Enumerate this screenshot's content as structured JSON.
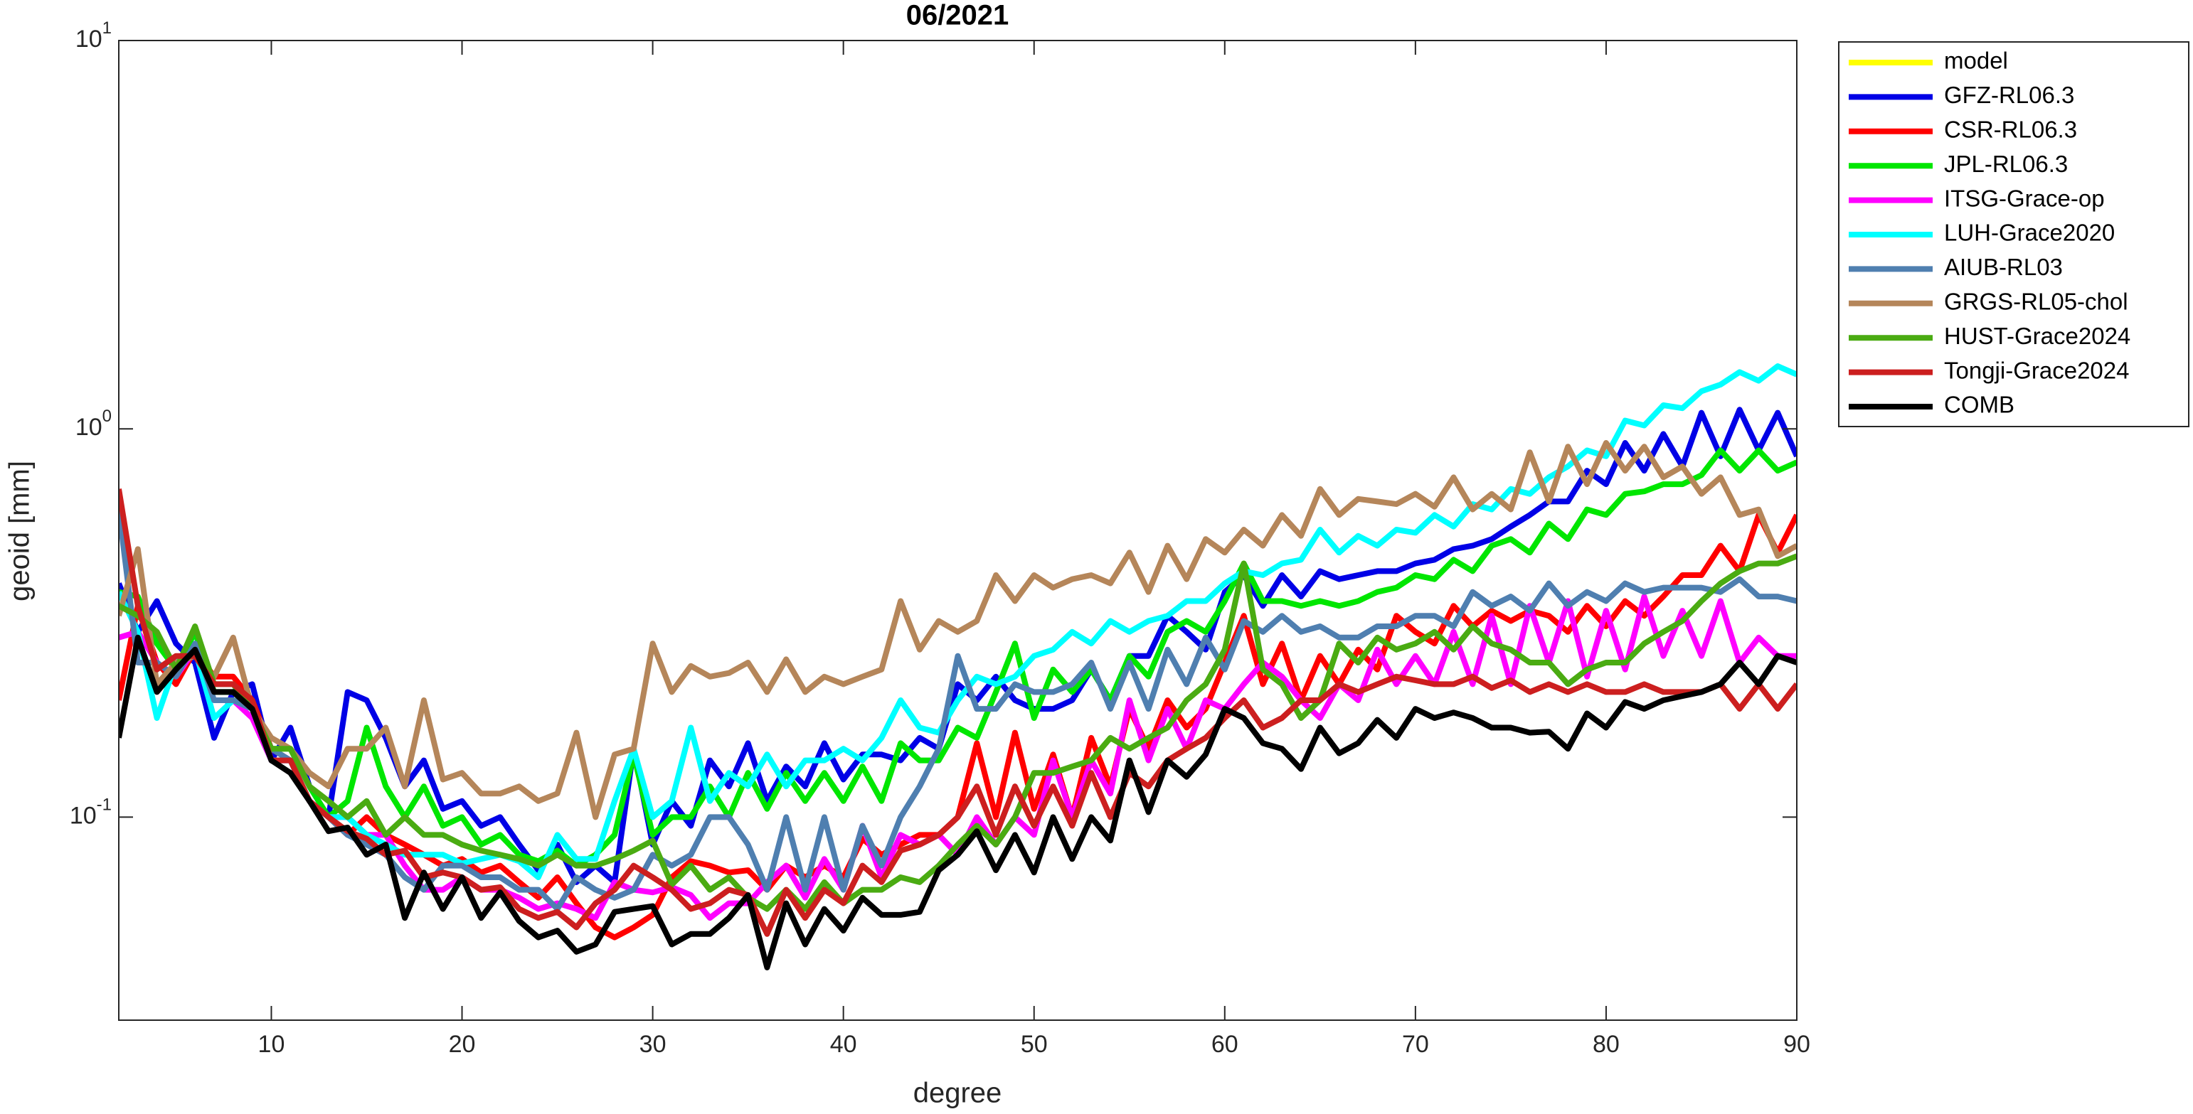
{
  "chart_data": {
    "type": "line",
    "title": "06/2021",
    "x_label": "degree",
    "y_label": "geoid [mm]",
    "log_y": true,
    "legend": "northeastoutside",
    "xlim": [
      2,
      90
    ],
    "xticks": [
      10,
      20,
      30,
      40,
      50,
      60,
      70,
      80,
      90
    ],
    "ylim": [
      0.03,
      10
    ],
    "yticks": [
      {
        "value": 0.1,
        "label": "10",
        "exponent": "-1"
      },
      {
        "value": 1,
        "label": "10",
        "exponent": "0"
      },
      {
        "value": 10,
        "label": "10",
        "exponent": "1"
      }
    ],
    "x": [
      2,
      3,
      4,
      5,
      6,
      7,
      8,
      9,
      10,
      11,
      12,
      13,
      14,
      15,
      16,
      17,
      18,
      19,
      20,
      21,
      22,
      23,
      24,
      25,
      26,
      27,
      28,
      29,
      30,
      31,
      32,
      33,
      34,
      35,
      36,
      37,
      38,
      39,
      40,
      41,
      42,
      43,
      44,
      45,
      46,
      47,
      48,
      49,
      50,
      51,
      52,
      53,
      54,
      55,
      56,
      57,
      58,
      59,
      60,
      61,
      62,
      63,
      64,
      65,
      66,
      67,
      68,
      69,
      70,
      71,
      72,
      73,
      74,
      75,
      76,
      77,
      78,
      79,
      80,
      81,
      82,
      83,
      84,
      85,
      86,
      87,
      88,
      89,
      90
    ],
    "series": [
      {
        "name": "model",
        "color": "#ffff00",
        "values": [
          null,
          null,
          null,
          null,
          null,
          null,
          null,
          null,
          null,
          null,
          null,
          null,
          null,
          null,
          null,
          null,
          null,
          null,
          null,
          null,
          null,
          null,
          null,
          null,
          null,
          null,
          null,
          null,
          null,
          null,
          null,
          null,
          null,
          null,
          null,
          null,
          null,
          null,
          null,
          null,
          null,
          null,
          null,
          null,
          null,
          null,
          null,
          null,
          null,
          null,
          null,
          null,
          null,
          null,
          null,
          null,
          null,
          null,
          null,
          null,
          null,
          null,
          null,
          null,
          null,
          null,
          null,
          null,
          null,
          null,
          null,
          null,
          null,
          null,
          null,
          null,
          null,
          null,
          null,
          null,
          null,
          null,
          null,
          null,
          null,
          null,
          null,
          null,
          null
        ]
      },
      {
        "name": "GFZ-RL06.3",
        "color": "#0000e6",
        "values": [
          0.4,
          0.3,
          0.36,
          0.28,
          0.25,
          0.16,
          0.21,
          0.22,
          0.14,
          0.17,
          0.12,
          0.1,
          0.21,
          0.2,
          0.16,
          0.12,
          0.14,
          0.105,
          0.11,
          0.095,
          0.1,
          0.085,
          0.073,
          0.085,
          0.068,
          0.075,
          0.068,
          0.15,
          0.085,
          0.11,
          0.095,
          0.14,
          0.12,
          0.155,
          0.11,
          0.135,
          0.12,
          0.155,
          0.125,
          0.145,
          0.145,
          0.14,
          0.16,
          0.15,
          0.22,
          0.2,
          0.23,
          0.2,
          0.19,
          0.19,
          0.2,
          0.24,
          0.2,
          0.26,
          0.26,
          0.33,
          0.3,
          0.27,
          0.38,
          0.42,
          0.35,
          0.42,
          0.37,
          0.43,
          0.41,
          0.42,
          0.43,
          0.43,
          0.45,
          0.46,
          0.49,
          0.5,
          0.52,
          0.56,
          0.6,
          0.65,
          0.65,
          0.78,
          0.72,
          0.92,
          0.78,
          0.97,
          0.8,
          1.1,
          0.85,
          1.12,
          0.88,
          1.1,
          0.85
        ]
      },
      {
        "name": "CSR-RL06.3",
        "color": "#ff0000",
        "values": [
          0.2,
          0.35,
          0.25,
          0.22,
          0.27,
          0.23,
          0.23,
          0.2,
          0.15,
          0.14,
          0.11,
          0.1,
          0.09,
          0.1,
          0.09,
          0.085,
          0.08,
          0.075,
          0.078,
          0.072,
          0.075,
          0.068,
          0.062,
          0.07,
          0.06,
          0.052,
          0.049,
          0.052,
          0.056,
          0.07,
          0.077,
          0.075,
          0.072,
          0.073,
          0.065,
          0.075,
          0.07,
          0.075,
          0.07,
          0.088,
          0.08,
          0.085,
          0.09,
          0.09,
          0.1,
          0.155,
          0.1,
          0.165,
          0.105,
          0.145,
          0.1,
          0.16,
          0.12,
          0.19,
          0.15,
          0.2,
          0.17,
          0.19,
          0.25,
          0.33,
          0.22,
          0.28,
          0.2,
          0.26,
          0.22,
          0.27,
          0.24,
          0.33,
          0.3,
          0.28,
          0.35,
          0.31,
          0.34,
          0.32,
          0.34,
          0.33,
          0.3,
          0.35,
          0.31,
          0.36,
          0.33,
          0.37,
          0.42,
          0.42,
          0.5,
          0.43,
          0.6,
          0.48,
          0.6
        ]
      },
      {
        "name": "JPL-RL06.3",
        "color": "#00e600",
        "values": [
          0.38,
          0.37,
          0.28,
          0.24,
          0.3,
          0.21,
          0.21,
          0.19,
          0.15,
          0.15,
          0.12,
          0.1,
          0.11,
          0.17,
          0.12,
          0.1,
          0.12,
          0.095,
          0.1,
          0.085,
          0.09,
          0.08,
          0.077,
          0.082,
          0.075,
          0.08,
          0.09,
          0.145,
          0.09,
          0.1,
          0.1,
          0.12,
          0.1,
          0.13,
          0.105,
          0.13,
          0.11,
          0.13,
          0.11,
          0.135,
          0.11,
          0.155,
          0.14,
          0.14,
          0.17,
          0.16,
          0.21,
          0.28,
          0.18,
          0.24,
          0.21,
          0.24,
          0.2,
          0.26,
          0.23,
          0.3,
          0.32,
          0.3,
          0.36,
          0.45,
          0.36,
          0.36,
          0.35,
          0.36,
          0.35,
          0.36,
          0.38,
          0.39,
          0.42,
          0.41,
          0.46,
          0.43,
          0.5,
          0.52,
          0.48,
          0.57,
          0.52,
          0.62,
          0.6,
          0.68,
          0.69,
          0.72,
          0.72,
          0.76,
          0.88,
          0.78,
          0.88,
          0.78,
          0.82
        ]
      },
      {
        "name": "ITSG-Grace-op",
        "color": "#ff00ff",
        "values": [
          0.29,
          0.3,
          0.25,
          0.23,
          0.27,
          0.2,
          0.2,
          0.18,
          0.14,
          0.14,
          0.11,
          0.1,
          0.1,
          0.09,
          0.09,
          0.075,
          0.065,
          0.065,
          0.07,
          0.065,
          0.065,
          0.062,
          0.058,
          0.06,
          0.058,
          0.055,
          0.068,
          0.065,
          0.064,
          0.066,
          0.063,
          0.055,
          0.06,
          0.06,
          0.068,
          0.075,
          0.062,
          0.078,
          0.065,
          0.095,
          0.07,
          0.09,
          0.085,
          0.09,
          0.08,
          0.1,
          0.085,
          0.1,
          0.09,
          0.14,
          0.1,
          0.14,
          0.115,
          0.2,
          0.14,
          0.19,
          0.15,
          0.2,
          0.19,
          0.22,
          0.25,
          0.23,
          0.2,
          0.18,
          0.22,
          0.2,
          0.27,
          0.22,
          0.26,
          0.22,
          0.3,
          0.22,
          0.33,
          0.22,
          0.35,
          0.25,
          0.36,
          0.23,
          0.34,
          0.24,
          0.37,
          0.26,
          0.34,
          0.26,
          0.36,
          0.25,
          0.29,
          0.26,
          0.26
        ]
      },
      {
        "name": "LUH-Grace2020",
        "color": "#00ffff",
        "values": [
          0.38,
          0.3,
          0.18,
          0.25,
          0.27,
          0.18,
          0.2,
          0.19,
          0.14,
          0.14,
          0.11,
          0.1,
          0.1,
          0.09,
          0.085,
          0.08,
          0.08,
          0.08,
          0.076,
          0.078,
          0.08,
          0.077,
          0.07,
          0.09,
          0.078,
          0.078,
          0.11,
          0.15,
          0.1,
          0.11,
          0.17,
          0.11,
          0.13,
          0.12,
          0.145,
          0.12,
          0.14,
          0.14,
          0.15,
          0.14,
          0.16,
          0.2,
          0.17,
          0.165,
          0.2,
          0.23,
          0.22,
          0.23,
          0.26,
          0.27,
          0.3,
          0.28,
          0.32,
          0.3,
          0.32,
          0.33,
          0.36,
          0.36,
          0.4,
          0.43,
          0.42,
          0.45,
          0.46,
          0.55,
          0.48,
          0.53,
          0.5,
          0.55,
          0.54,
          0.6,
          0.56,
          0.64,
          0.62,
          0.7,
          0.68,
          0.75,
          0.8,
          0.88,
          0.85,
          1.05,
          1.02,
          1.15,
          1.13,
          1.25,
          1.3,
          1.4,
          1.33,
          1.45,
          1.38
        ]
      },
      {
        "name": "AIUB-RL03",
        "color": "#4f7fb0",
        "values": [
          0.62,
          0.25,
          0.25,
          0.23,
          0.28,
          0.2,
          0.2,
          0.19,
          0.15,
          0.14,
          0.11,
          0.1,
          0.09,
          0.085,
          0.08,
          0.07,
          0.065,
          0.075,
          0.075,
          0.07,
          0.07,
          0.065,
          0.065,
          0.058,
          0.07,
          0.065,
          0.062,
          0.065,
          0.08,
          0.075,
          0.08,
          0.1,
          0.1,
          0.085,
          0.065,
          0.1,
          0.065,
          0.1,
          0.065,
          0.095,
          0.075,
          0.1,
          0.12,
          0.15,
          0.26,
          0.19,
          0.19,
          0.22,
          0.21,
          0.21,
          0.22,
          0.25,
          0.19,
          0.25,
          0.19,
          0.27,
          0.22,
          0.29,
          0.24,
          0.32,
          0.3,
          0.33,
          0.3,
          0.31,
          0.29,
          0.29,
          0.31,
          0.31,
          0.33,
          0.33,
          0.31,
          0.38,
          0.35,
          0.37,
          0.34,
          0.4,
          0.35,
          0.38,
          0.36,
          0.4,
          0.38,
          0.39,
          0.39,
          0.39,
          0.38,
          0.41,
          0.37,
          0.37,
          0.36
        ]
      },
      {
        "name": "GRGS-RL05-chol",
        "color": "#b5865a",
        "values": [
          0.33,
          0.49,
          0.22,
          0.25,
          0.26,
          0.23,
          0.29,
          0.19,
          0.16,
          0.15,
          0.13,
          0.12,
          0.15,
          0.15,
          0.17,
          0.12,
          0.2,
          0.125,
          0.13,
          0.115,
          0.115,
          0.12,
          0.11,
          0.115,
          0.165,
          0.1,
          0.145,
          0.15,
          0.28,
          0.21,
          0.245,
          0.23,
          0.235,
          0.25,
          0.21,
          0.255,
          0.21,
          0.23,
          0.22,
          0.23,
          0.24,
          0.36,
          0.27,
          0.32,
          0.3,
          0.32,
          0.42,
          0.36,
          0.42,
          0.39,
          0.41,
          0.42,
          0.4,
          0.48,
          0.38,
          0.5,
          0.41,
          0.52,
          0.48,
          0.55,
          0.5,
          0.6,
          0.53,
          0.7,
          0.6,
          0.66,
          0.65,
          0.64,
          0.68,
          0.63,
          0.75,
          0.62,
          0.68,
          0.62,
          0.87,
          0.65,
          0.9,
          0.72,
          0.92,
          0.78,
          0.9,
          0.75,
          0.8,
          0.68,
          0.75,
          0.6,
          0.62,
          0.47,
          0.5
        ]
      },
      {
        "name": "HUST-Grace2024",
        "color": "#4aab12",
        "values": [
          0.35,
          0.33,
          0.3,
          0.24,
          0.31,
          0.22,
          0.22,
          0.19,
          0.15,
          0.15,
          0.12,
          0.11,
          0.1,
          0.11,
          0.09,
          0.1,
          0.09,
          0.09,
          0.085,
          0.082,
          0.08,
          0.078,
          0.075,
          0.08,
          0.075,
          0.075,
          0.078,
          0.082,
          0.087,
          0.067,
          0.075,
          0.065,
          0.07,
          0.062,
          0.058,
          0.065,
          0.058,
          0.068,
          0.06,
          0.065,
          0.065,
          0.07,
          0.068,
          0.075,
          0.085,
          0.095,
          0.085,
          0.1,
          0.13,
          0.13,
          0.135,
          0.14,
          0.16,
          0.15,
          0.16,
          0.17,
          0.2,
          0.22,
          0.27,
          0.45,
          0.24,
          0.22,
          0.18,
          0.2,
          0.28,
          0.25,
          0.29,
          0.27,
          0.28,
          0.3,
          0.27,
          0.31,
          0.28,
          0.27,
          0.25,
          0.25,
          0.22,
          0.24,
          0.25,
          0.25,
          0.28,
          0.3,
          0.32,
          0.36,
          0.4,
          0.43,
          0.45,
          0.45,
          0.47
        ]
      },
      {
        "name": "Tongji-Grace2024",
        "color": "#cc1f1f",
        "values": [
          0.7,
          0.35,
          0.24,
          0.26,
          0.26,
          0.22,
          0.22,
          0.2,
          0.14,
          0.14,
          0.11,
          0.1,
          0.092,
          0.088,
          0.08,
          0.082,
          0.07,
          0.072,
          0.07,
          0.065,
          0.066,
          0.058,
          0.055,
          0.057,
          0.052,
          0.06,
          0.065,
          0.075,
          0.07,
          0.065,
          0.058,
          0.06,
          0.065,
          0.063,
          0.05,
          0.065,
          0.055,
          0.065,
          0.06,
          0.075,
          0.068,
          0.082,
          0.085,
          0.09,
          0.1,
          0.12,
          0.09,
          0.12,
          0.095,
          0.12,
          0.095,
          0.13,
          0.1,
          0.13,
          0.12,
          0.14,
          0.15,
          0.16,
          0.18,
          0.2,
          0.17,
          0.18,
          0.2,
          0.2,
          0.22,
          0.21,
          0.22,
          0.23,
          0.225,
          0.22,
          0.22,
          0.23,
          0.215,
          0.225,
          0.21,
          0.22,
          0.21,
          0.22,
          0.21,
          0.21,
          0.22,
          0.21,
          0.21,
          0.21,
          0.22,
          0.19,
          0.22,
          0.19,
          0.22
        ]
      },
      {
        "name": "COMB",
        "color": "#000000",
        "values": [
          0.16,
          0.29,
          0.21,
          0.24,
          0.27,
          0.21,
          0.21,
          0.19,
          0.14,
          0.13,
          0.11,
          0.092,
          0.094,
          0.08,
          0.085,
          0.055,
          0.072,
          0.058,
          0.07,
          0.055,
          0.064,
          0.054,
          0.049,
          0.051,
          0.045,
          0.047,
          0.057,
          0.058,
          0.059,
          0.047,
          0.05,
          0.05,
          0.055,
          0.063,
          0.041,
          0.06,
          0.047,
          0.058,
          0.051,
          0.062,
          0.056,
          0.056,
          0.057,
          0.073,
          0.08,
          0.092,
          0.073,
          0.09,
          0.072,
          0.1,
          0.078,
          0.1,
          0.087,
          0.14,
          0.103,
          0.14,
          0.127,
          0.145,
          0.19,
          0.18,
          0.155,
          0.15,
          0.133,
          0.17,
          0.146,
          0.155,
          0.178,
          0.16,
          0.19,
          0.18,
          0.186,
          0.18,
          0.17,
          0.17,
          0.165,
          0.166,
          0.15,
          0.185,
          0.17,
          0.198,
          0.19,
          0.2,
          0.205,
          0.21,
          0.22,
          0.25,
          0.22,
          0.26,
          0.25
        ]
      }
    ]
  }
}
